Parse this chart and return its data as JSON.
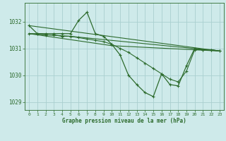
{
  "title": "Graphe pression niveau de la mer (hPa)",
  "background_color": "#ceeaea",
  "grid_color": "#aacfcf",
  "line_color": "#2d6b2d",
  "xlim": [
    -0.5,
    23.5
  ],
  "ylim": [
    1028.7,
    1032.7
  ],
  "yticks": [
    1029,
    1030,
    1031,
    1032
  ],
  "xticks": [
    0,
    1,
    2,
    3,
    4,
    5,
    6,
    7,
    8,
    9,
    10,
    11,
    12,
    13,
    14,
    15,
    16,
    17,
    18,
    19,
    20,
    21,
    22,
    23
  ],
  "series": [
    {
      "x": [
        0,
        1,
        2,
        3,
        4,
        5,
        6,
        7,
        8,
        9,
        10,
        11,
        12,
        13,
        14,
        15,
        16,
        17,
        18,
        19,
        20,
        21,
        22,
        23
      ],
      "y": [
        1031.85,
        1031.55,
        1031.55,
        1031.55,
        1031.55,
        1031.55,
        1032.05,
        1032.35,
        1031.55,
        1031.45,
        1031.15,
        1030.75,
        1030.0,
        1029.65,
        1029.35,
        1029.2,
        1030.05,
        1029.65,
        1029.6,
        1030.35,
        1031.0,
        1030.95,
        1030.95,
        1030.9
      ],
      "marker": true,
      "linewidth": 0.9
    },
    {
      "x": [
        0,
        23
      ],
      "y": [
        1031.85,
        1030.9
      ],
      "marker": false,
      "linewidth": 0.8
    },
    {
      "x": [
        0,
        10,
        23
      ],
      "y": [
        1031.55,
        1031.1,
        1030.9
      ],
      "marker": false,
      "linewidth": 0.8
    },
    {
      "x": [
        0,
        5,
        23
      ],
      "y": [
        1031.55,
        1031.45,
        1030.9
      ],
      "marker": false,
      "linewidth": 0.8
    },
    {
      "x": [
        0,
        1,
        2,
        3,
        4,
        5,
        6,
        7,
        8,
        9,
        10,
        11,
        12,
        13,
        14,
        15,
        16,
        17,
        18,
        19,
        20,
        21,
        22,
        23
      ],
      "y": [
        1031.55,
        1031.55,
        1031.5,
        1031.5,
        1031.45,
        1031.45,
        1031.4,
        1031.35,
        1031.3,
        1031.25,
        1031.15,
        1031.0,
        1030.85,
        1030.65,
        1030.45,
        1030.25,
        1030.05,
        1029.85,
        1029.75,
        1030.15,
        1030.95,
        1030.95,
        1030.95,
        1030.9
      ],
      "marker": true,
      "linewidth": 0.8
    }
  ]
}
